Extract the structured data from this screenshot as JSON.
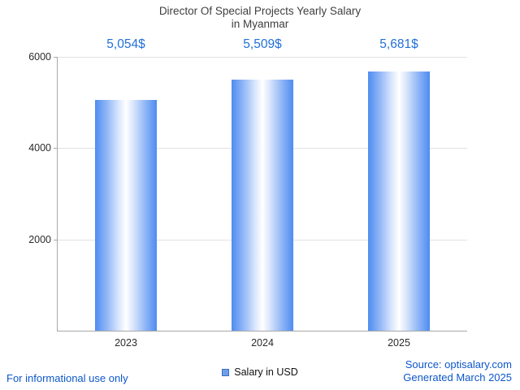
{
  "title": {
    "line1": "Director Of Special Projects Yearly Salary",
    "line2": "in Myanmar"
  },
  "chart_data": {
    "type": "bar",
    "categories": [
      "2023",
      "2024",
      "2025"
    ],
    "values": [
      5054,
      5509,
      5681
    ],
    "value_labels": [
      "5,054$",
      "5,509$",
      "5,681$"
    ],
    "y_ticks": [
      2000,
      4000,
      6000
    ],
    "ylim": [
      0,
      6000
    ],
    "grid": true,
    "legend": [
      "Salary in USD"
    ],
    "legend_position": "bottom",
    "bar_color": "#4f8cf0",
    "bar_gradient_center": "#ffffff",
    "value_label_color": "#2270d8",
    "title": "Director Of Special Projects Yearly Salary in Myanmar",
    "xlabel": "",
    "ylabel": ""
  },
  "footer": {
    "left": "For informational use only",
    "source": "Source: optisalary.com",
    "generated": "Generated March 2025"
  }
}
